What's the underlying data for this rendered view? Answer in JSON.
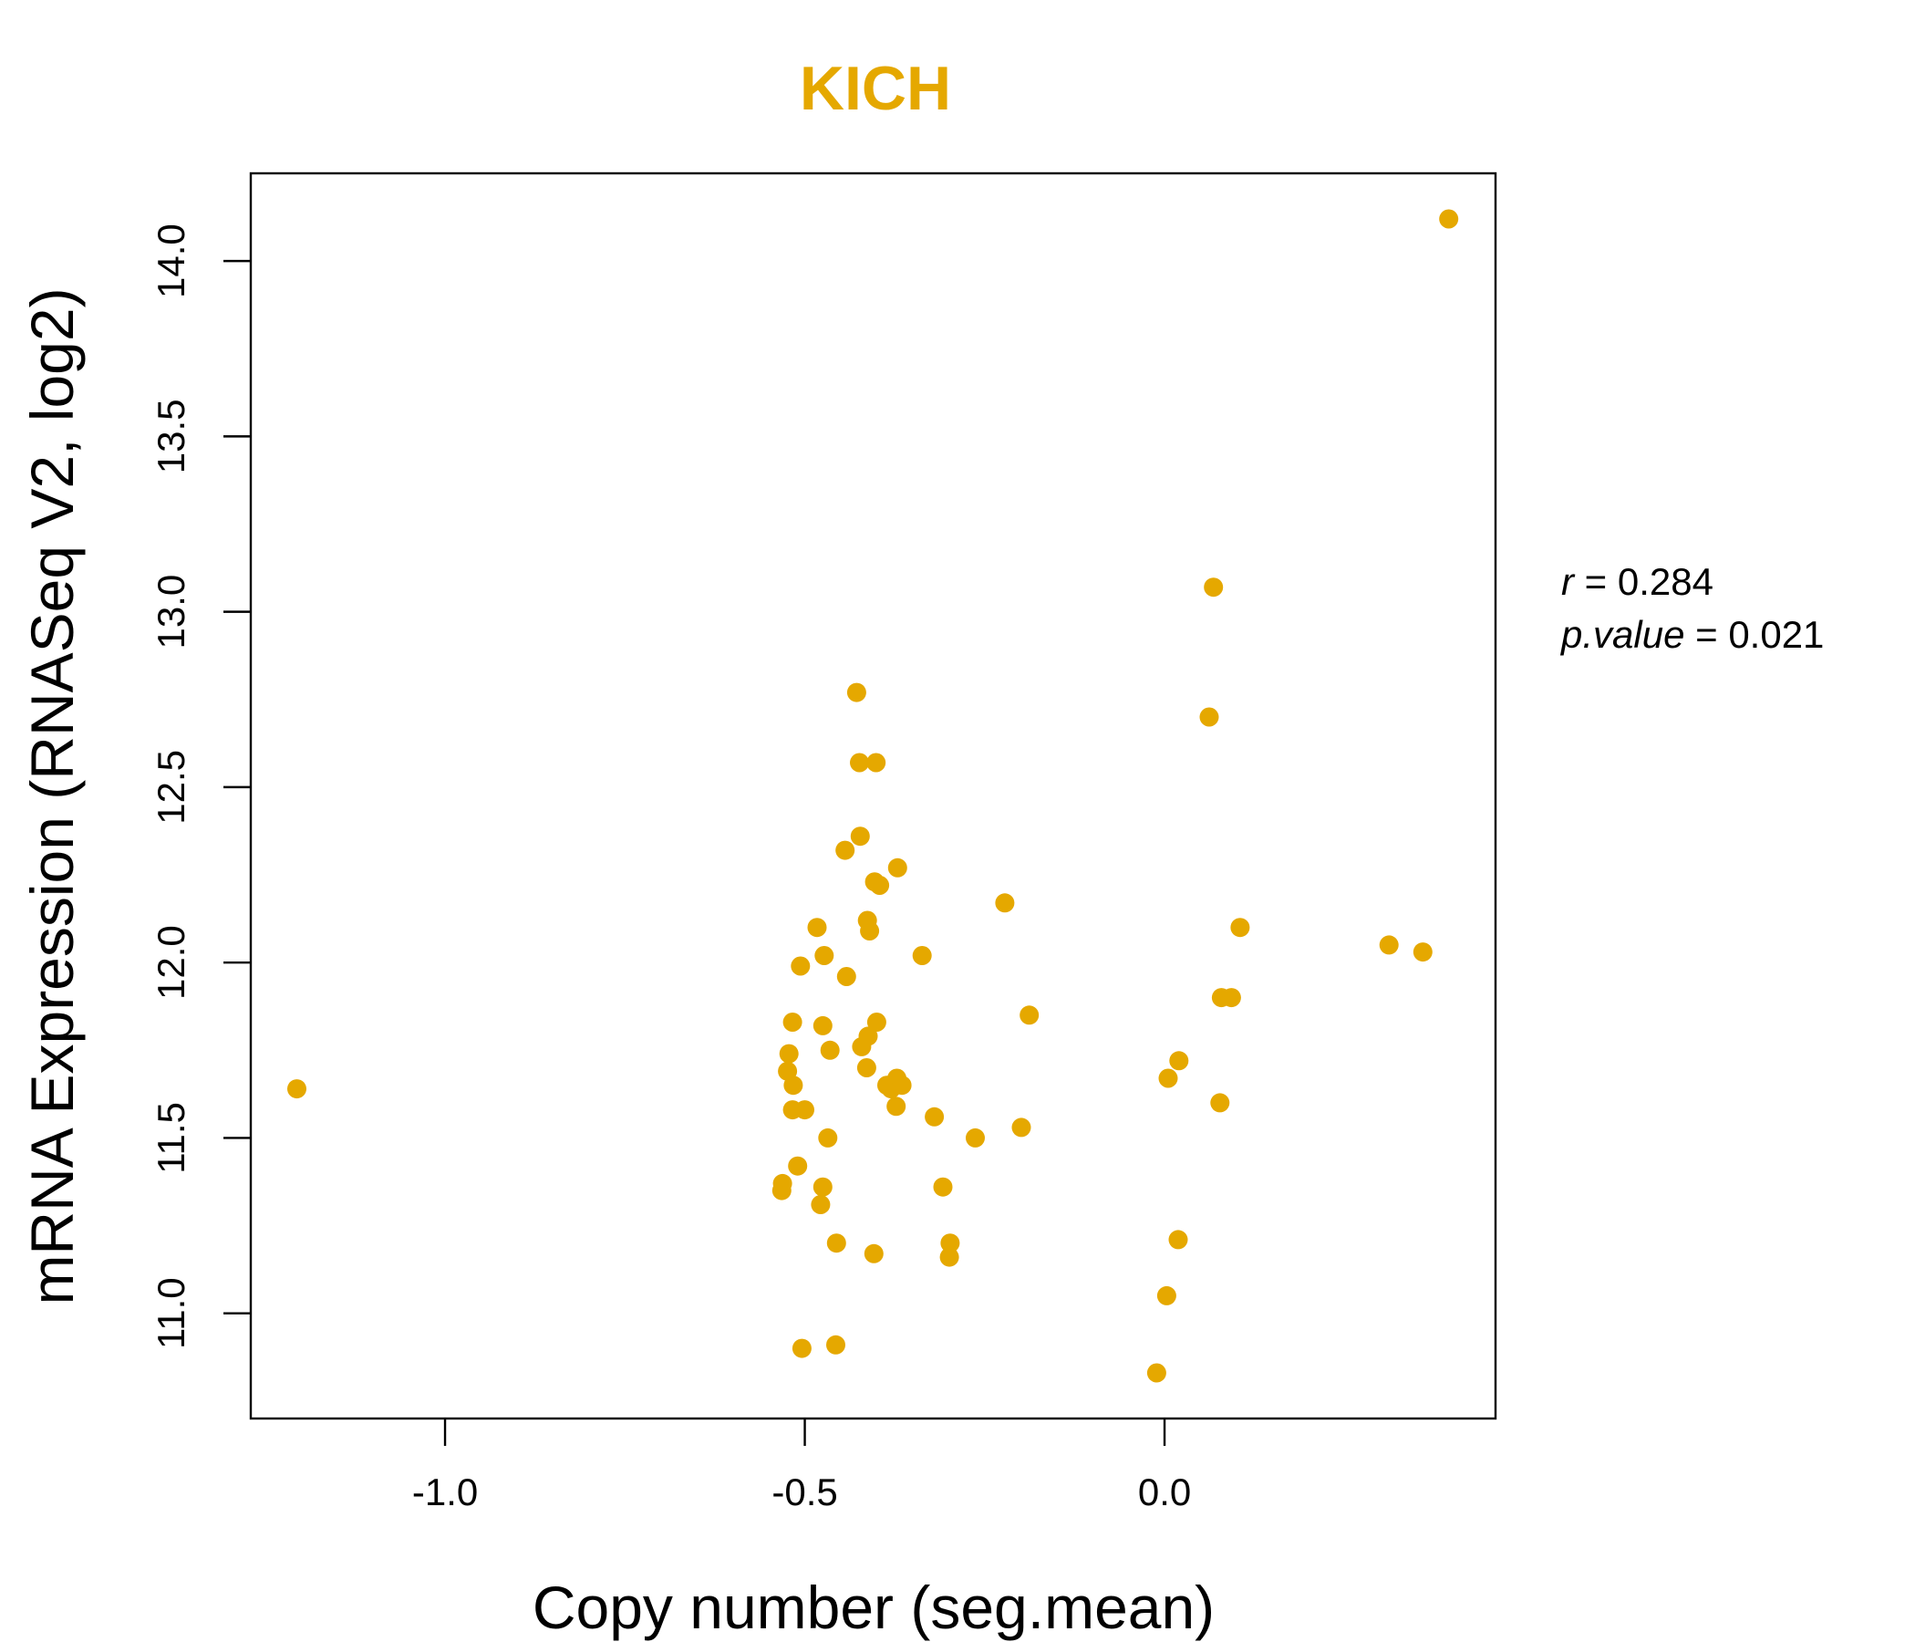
{
  "chart_data": {
    "type": "scatter",
    "title": "KICH",
    "xlabel": "Copy number (seg.mean)",
    "ylabel": "mRNA Expression (RNASeq V2, log2)",
    "xlim": [
      -1.27,
      0.46
    ],
    "ylim": [
      10.7,
      14.25
    ],
    "xticks": [
      -1.0,
      -0.5,
      0.0
    ],
    "xtick_labels": [
      "-1.0",
      "-0.5",
      "0.0"
    ],
    "yticks": [
      11.0,
      11.5,
      12.0,
      12.5,
      13.0,
      13.5,
      14.0
    ],
    "ytick_labels": [
      "11.0",
      "11.5",
      "12.0",
      "12.5",
      "13.0",
      "13.5",
      "14.0"
    ],
    "grid": false,
    "point_color": "#E5A800",
    "title_color": "#E5A800",
    "points": [
      {
        "x": -1.206,
        "y": 11.64
      },
      {
        "x": 0.395,
        "y": 14.12
      },
      {
        "x": 0.068,
        "y": 13.07
      },
      {
        "x": 0.062,
        "y": 12.7
      },
      {
        "x": -0.428,
        "y": 12.77
      },
      {
        "x": -0.424,
        "y": 12.57
      },
      {
        "x": -0.401,
        "y": 12.57
      },
      {
        "x": -0.423,
        "y": 12.36
      },
      {
        "x": -0.444,
        "y": 12.32
      },
      {
        "x": -0.371,
        "y": 12.27
      },
      {
        "x": -0.403,
        "y": 12.23
      },
      {
        "x": -0.396,
        "y": 12.22
      },
      {
        "x": -0.222,
        "y": 12.17
      },
      {
        "x": -0.413,
        "y": 12.12
      },
      {
        "x": -0.41,
        "y": 12.09
      },
      {
        "x": -0.483,
        "y": 12.1
      },
      {
        "x": 0.105,
        "y": 12.1
      },
      {
        "x": 0.312,
        "y": 12.05
      },
      {
        "x": 0.359,
        "y": 12.03
      },
      {
        "x": -0.473,
        "y": 12.02
      },
      {
        "x": -0.337,
        "y": 12.02
      },
      {
        "x": -0.506,
        "y": 11.99
      },
      {
        "x": -0.442,
        "y": 11.96
      },
      {
        "x": 0.079,
        "y": 11.9
      },
      {
        "x": 0.093,
        "y": 11.9
      },
      {
        "x": -0.188,
        "y": 11.85
      },
      {
        "x": -0.517,
        "y": 11.83
      },
      {
        "x": -0.475,
        "y": 11.82
      },
      {
        "x": -0.4,
        "y": 11.83
      },
      {
        "x": -0.412,
        "y": 11.79
      },
      {
        "x": -0.421,
        "y": 11.76
      },
      {
        "x": -0.465,
        "y": 11.75
      },
      {
        "x": -0.522,
        "y": 11.74
      },
      {
        "x": 0.02,
        "y": 11.72
      },
      {
        "x": -0.524,
        "y": 11.69
      },
      {
        "x": -0.414,
        "y": 11.7
      },
      {
        "x": 0.005,
        "y": 11.67
      },
      {
        "x": -0.372,
        "y": 11.67
      },
      {
        "x": -0.516,
        "y": 11.65
      },
      {
        "x": -0.386,
        "y": 11.65
      },
      {
        "x": -0.38,
        "y": 11.64
      },
      {
        "x": -0.365,
        "y": 11.65
      },
      {
        "x": 0.077,
        "y": 11.6
      },
      {
        "x": -0.373,
        "y": 11.59
      },
      {
        "x": -0.517,
        "y": 11.58
      },
      {
        "x": -0.5,
        "y": 11.58
      },
      {
        "x": -0.32,
        "y": 11.56
      },
      {
        "x": -0.199,
        "y": 11.53
      },
      {
        "x": -0.263,
        "y": 11.5
      },
      {
        "x": -0.468,
        "y": 11.5
      },
      {
        "x": -0.51,
        "y": 11.42
      },
      {
        "x": -0.531,
        "y": 11.37
      },
      {
        "x": -0.532,
        "y": 11.35
      },
      {
        "x": -0.475,
        "y": 11.36
      },
      {
        "x": -0.308,
        "y": 11.36
      },
      {
        "x": -0.478,
        "y": 11.31
      },
      {
        "x": 0.019,
        "y": 11.21
      },
      {
        "x": -0.456,
        "y": 11.2
      },
      {
        "x": -0.298,
        "y": 11.2
      },
      {
        "x": -0.404,
        "y": 11.17
      },
      {
        "x": -0.299,
        "y": 11.16
      },
      {
        "x": 0.003,
        "y": 11.05
      },
      {
        "x": -0.504,
        "y": 10.9
      },
      {
        "x": -0.457,
        "y": 10.91
      },
      {
        "x": -0.011,
        "y": 10.83
      }
    ],
    "annotations": [
      {
        "label": "r",
        "value": "0.284"
      },
      {
        "label": "p.value",
        "value": "0.021"
      }
    ]
  }
}
